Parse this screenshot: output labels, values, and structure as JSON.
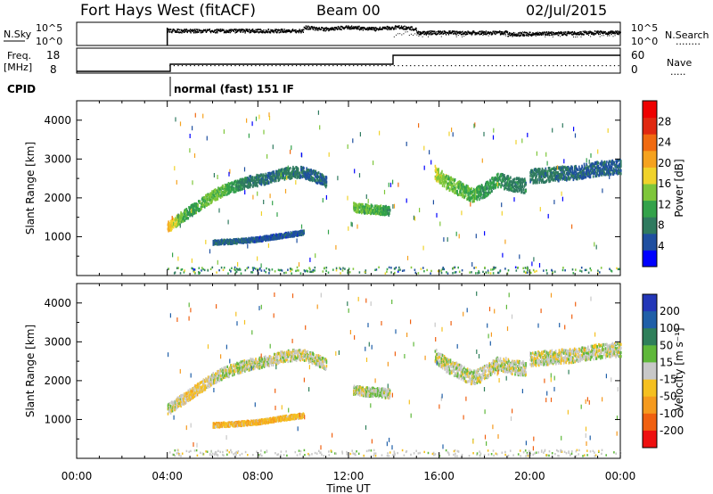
{
  "header": {
    "station": "Fort Hays West (fitACF)",
    "beam": "Beam 00",
    "date": "02/Jul/2015"
  },
  "panels": {
    "nsky": {
      "left_label": "N.Sky",
      "left_ticks": [
        "10^5",
        "10^0"
      ],
      "right_ticks": [
        "10^5",
        "10^0"
      ],
      "right_label": "N.Search",
      "right_legend": "........"
    },
    "freq": {
      "left_label_1": "Freq.",
      "left_label_2": "[MHz]",
      "left_ticks": [
        "18",
        "8"
      ],
      "right_ticks": [
        "60",
        "0"
      ],
      "right_label": "Nave",
      "right_legend": "....."
    },
    "cpid": {
      "label": "CPID",
      "text": "normal (fast) 151 IF"
    }
  },
  "axes": {
    "xlabel": "Time UT",
    "xticks": [
      "00:00",
      "04:00",
      "08:00",
      "12:00",
      "16:00",
      "20:00",
      "00:00"
    ],
    "ylabel": "Slant Range [km]",
    "yticks": [
      "1000",
      "2000",
      "3000",
      "4000"
    ],
    "ylim": [
      0,
      4500
    ]
  },
  "colorbars": {
    "power": {
      "label": "Power [dB]",
      "ticks": [
        "4",
        "8",
        "12",
        "16",
        "20",
        "24",
        "28"
      ],
      "colors": [
        "#0000ff",
        "#1f4fa0",
        "#2f7a5f",
        "#33a24a",
        "#7ec63a",
        "#f0d22a",
        "#f5a21e",
        "#f06a10",
        "#e02810",
        "#ee0000"
      ]
    },
    "velocity": {
      "label": "Velocity [m s⁻¹]",
      "ticks": [
        "200",
        "100",
        "50",
        "15",
        "-15",
        "-50",
        "-100",
        "-200"
      ],
      "colors": [
        "#2337b8",
        "#1f5fa8",
        "#2f7f5a",
        "#5fb83a",
        "#c8c8c8",
        "#f5c020",
        "#f59a1e",
        "#f06010",
        "#ee1010"
      ]
    }
  },
  "chart_data": [
    {
      "type": "heatmap",
      "title": "Power",
      "xlabel": "Time UT",
      "ylabel": "Slant Range [km]",
      "xlim_hours": [
        0,
        24
      ],
      "ylim": [
        0,
        4500
      ],
      "colorbar": "Power [dB]",
      "scatter_bands": [
        {
          "name": "main",
          "x": [
            4.0,
            4.5,
            5.0,
            5.5,
            6.0,
            6.5,
            7.0,
            7.5,
            8.0,
            8.5,
            9.0,
            9.5,
            10.0,
            10.5,
            11.0
          ],
          "y": [
            1250,
            1450,
            1650,
            1850,
            2050,
            2200,
            2300,
            2400,
            2450,
            2500,
            2600,
            2650,
            2650,
            2550,
            2400
          ],
          "values": [
            20,
            14,
            10,
            12,
            14,
            12,
            10,
            8,
            8,
            6,
            8,
            8,
            6,
            6,
            6
          ]
        },
        {
          "name": "low",
          "x": [
            6.0,
            7.0,
            8.0,
            9.0,
            10.0
          ],
          "y": [
            850,
            880,
            930,
            1020,
            1100
          ],
          "values": [
            6,
            6,
            5,
            5,
            5
          ]
        },
        {
          "name": "mid",
          "x": [
            12.2,
            12.6,
            13.0,
            13.4,
            13.8
          ],
          "y": [
            1750,
            1720,
            1700,
            1680,
            1660
          ],
          "values": [
            14,
            14,
            12,
            12,
            10
          ]
        },
        {
          "name": "evening",
          "x": [
            15.8,
            16.3,
            17.0,
            17.5,
            18.0,
            18.6,
            19.2,
            19.8
          ],
          "y": [
            2650,
            2400,
            2200,
            2050,
            2200,
            2450,
            2350,
            2300
          ],
          "values": [
            16,
            14,
            12,
            12,
            10,
            10,
            8,
            8
          ]
        },
        {
          "name": "late",
          "x": [
            20.0,
            21.0,
            22.0,
            23.0,
            24.0
          ],
          "y": [
            2550,
            2600,
            2650,
            2750,
            2800
          ],
          "values": [
            8,
            8,
            6,
            6,
            6
          ]
        }
      ]
    },
    {
      "type": "heatmap",
      "title": "Velocity",
      "xlabel": "Time UT",
      "ylabel": "Slant Range [km]",
      "xlim_hours": [
        0,
        24
      ],
      "ylim": [
        0,
        4500
      ],
      "colorbar": "Velocity [m s⁻¹]",
      "scatter_bands": [
        {
          "name": "main",
          "x": [
            4.0,
            4.5,
            5.0,
            5.5,
            6.0,
            6.5,
            7.0,
            7.5,
            8.0,
            8.5,
            9.0,
            9.5,
            10.0,
            10.5,
            11.0
          ],
          "y": [
            1250,
            1450,
            1650,
            1850,
            2050,
            2200,
            2300,
            2400,
            2450,
            2500,
            2600,
            2650,
            2650,
            2550,
            2400
          ],
          "values": [
            0,
            -10,
            -30,
            -20,
            0,
            5,
            0,
            0,
            10,
            0,
            0,
            -5,
            0,
            0,
            0
          ]
        },
        {
          "name": "low",
          "x": [
            6.0,
            7.0,
            8.0,
            9.0,
            10.0
          ],
          "y": [
            850,
            880,
            930,
            1020,
            1100
          ],
          "values": [
            -40,
            -40,
            -40,
            -40,
            -40
          ]
        },
        {
          "name": "mid",
          "x": [
            12.2,
            12.6,
            13.0,
            13.4,
            13.8
          ],
          "y": [
            1750,
            1720,
            1700,
            1680,
            1660
          ],
          "values": [
            0,
            0,
            10,
            20,
            0
          ]
        },
        {
          "name": "evening",
          "x": [
            15.8,
            16.3,
            17.0,
            17.5,
            18.0,
            18.6,
            19.2,
            19.8
          ],
          "y": [
            2650,
            2400,
            2200,
            2050,
            2200,
            2450,
            2350,
            2300
          ],
          "values": [
            0,
            0,
            5,
            0,
            0,
            0,
            5,
            0
          ]
        },
        {
          "name": "late",
          "x": [
            20.0,
            21.0,
            22.0,
            23.0,
            24.0
          ],
          "y": [
            2550,
            2600,
            2650,
            2750,
            2800
          ],
          "values": [
            0,
            0,
            0,
            0,
            0
          ]
        }
      ]
    }
  ]
}
